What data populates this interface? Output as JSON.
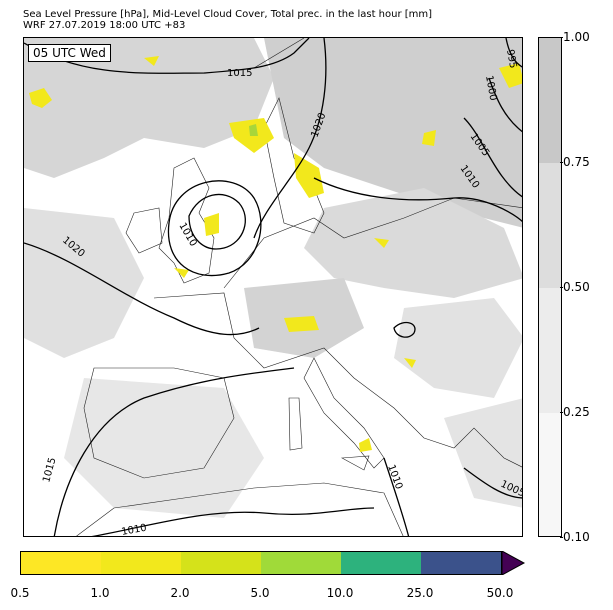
{
  "header": {
    "title_line1": "Sea Level Pressure [hPa], Mid-Level Cloud Cover, Total prec. in the last hour [mm]",
    "title_line2": "WRF 27.07.2019 18:00 UTC +83"
  },
  "map": {
    "valid_time_label": "05 UTC Wed",
    "isobar_labels": [
      "1015",
      "995",
      "1000",
      "1005",
      "1020",
      "1010",
      "1020",
      "1010",
      "1015",
      "1010",
      "1005",
      "1010"
    ],
    "colors": {
      "cloud_light": "#e3e3e3",
      "cloud_mid": "#c8c8c8",
      "precip": "#f2e81c",
      "precip_green": "#a7d63a",
      "isobar": "#000000"
    }
  },
  "cloud_colorbar": {
    "ticks": [
      "1.00",
      "0.75",
      "0.50",
      "0.25",
      "0.10"
    ],
    "colors": [
      "#c8c8c8",
      "#dddddd",
      "#ececec",
      "#f7f7f7"
    ]
  },
  "precip_colorbar": {
    "ticks": [
      "0.5",
      "1.0",
      "2.0",
      "5.0",
      "10.0",
      "25.0",
      "50.0"
    ],
    "colors": [
      "#fde725",
      "#f2e81c",
      "#d5e21a",
      "#a0da39",
      "#2db27d",
      "#3b528b"
    ],
    "extend_color": "#440154"
  }
}
